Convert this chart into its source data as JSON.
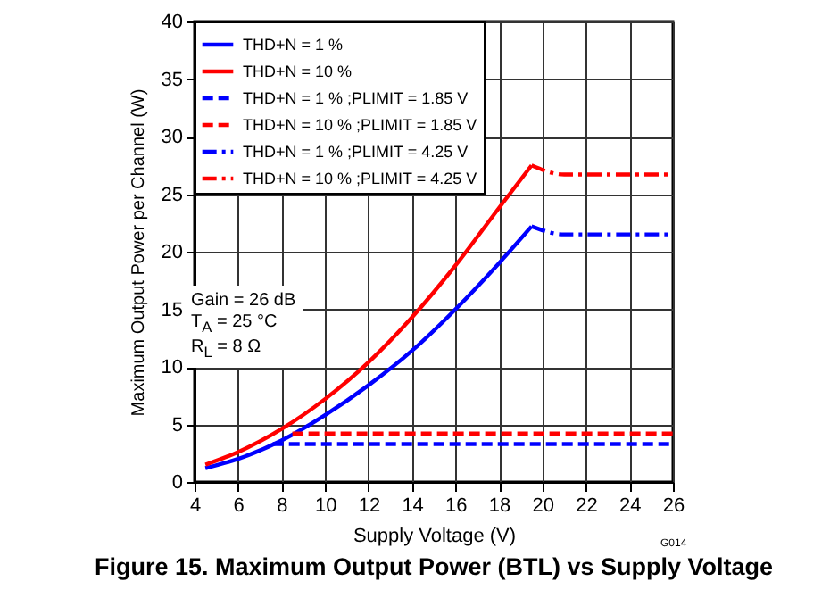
{
  "chart_data": {
    "type": "line",
    "title": "Figure 15. Maximum Output Power (BTL) vs Supply Voltage",
    "xlabel": "Supply Voltage (V)",
    "ylabel": "Maximum Output Power per Channel (W)",
    "xlim": [
      4,
      26
    ],
    "xticks": [
      4,
      6,
      8,
      10,
      12,
      14,
      16,
      18,
      20,
      22,
      24,
      26
    ],
    "ylim": [
      0,
      40
    ],
    "yticks": [
      0,
      5,
      10,
      15,
      20,
      25,
      30,
      35,
      40
    ],
    "grid": true,
    "legend": "top left",
    "annotations": [
      "Gain = 26 dB",
      "T$_{A}$ = 25 °C",
      "R$_{L}$ = 8 Ω",
      "G014"
    ],
    "series": [
      {
        "name": "THD+N = 1 %",
        "color": "#0000ff",
        "line_style": "solid",
        "x": [
          4.5,
          6,
          8,
          10,
          12,
          14,
          16,
          18,
          19.5
        ],
        "values": [
          1.2,
          2.0,
          3.6,
          5.8,
          8.4,
          11.4,
          15.0,
          19.0,
          22.2
        ]
      },
      {
        "name": "THD+N = 10 %",
        "color": "#ff0000",
        "line_style": "solid",
        "x": [
          4.5,
          6,
          8,
          10,
          12,
          14,
          16,
          18,
          19.5
        ],
        "values": [
          1.5,
          2.6,
          4.6,
          7.2,
          10.4,
          14.3,
          18.8,
          23.8,
          27.5
        ]
      },
      {
        "name": "THD+N = 1 % ;PLIMIT = 1.85 V",
        "color": "#0000ff",
        "line_style": "dashed",
        "x": [
          7.6,
          26
        ],
        "values": [
          3.3,
          3.3
        ]
      },
      {
        "name": "THD+N = 10 % ;PLIMIT = 1.85 V",
        "color": "#ff0000",
        "line_style": "dashed",
        "x": [
          8.5,
          26
        ],
        "values": [
          4.2,
          4.2
        ]
      },
      {
        "name": "THD+N = 1 % ;PLIMIT = 4.25 V",
        "color": "#0000ff",
        "line_style": "dashdot",
        "x": [
          19.5,
          21,
          26
        ],
        "values": [
          22.2,
          21.5,
          21.5
        ]
      },
      {
        "name": "THD+N = 10 % ;PLIMIT = 4.25 V",
        "color": "#ff0000",
        "line_style": "dashdot",
        "x": [
          19.5,
          21,
          26
        ],
        "values": [
          27.5,
          26.7,
          26.7
        ]
      }
    ]
  }
}
